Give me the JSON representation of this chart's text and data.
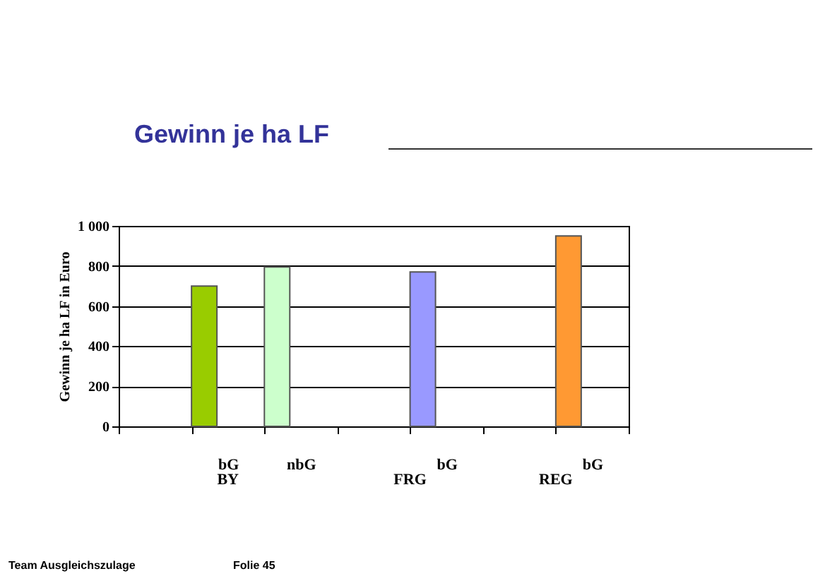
{
  "chart_data": {
    "type": "bar",
    "title": "Gewinn je ha LF",
    "ylabel": "Gewinn je ha LF in Euro",
    "categories": [
      null,
      "bG",
      "nbG",
      null,
      "bG",
      null,
      "bG"
    ],
    "values": [
      null,
      700,
      795,
      null,
      770,
      null,
      950
    ],
    "colors": [
      null,
      "#99cc00",
      "#ccffcc",
      null,
      "#9999ff",
      null,
      "#ff9933"
    ],
    "ylim": [
      0,
      1000
    ],
    "yticks": [
      0,
      200,
      400,
      600,
      800,
      {
        "value": 1000,
        "label": "1 000"
      }
    ],
    "grid": "y",
    "annotations": [
      "BY",
      "FRG",
      "REG",
      "Team Ausgleichszulage",
      "Folie 45"
    ]
  }
}
